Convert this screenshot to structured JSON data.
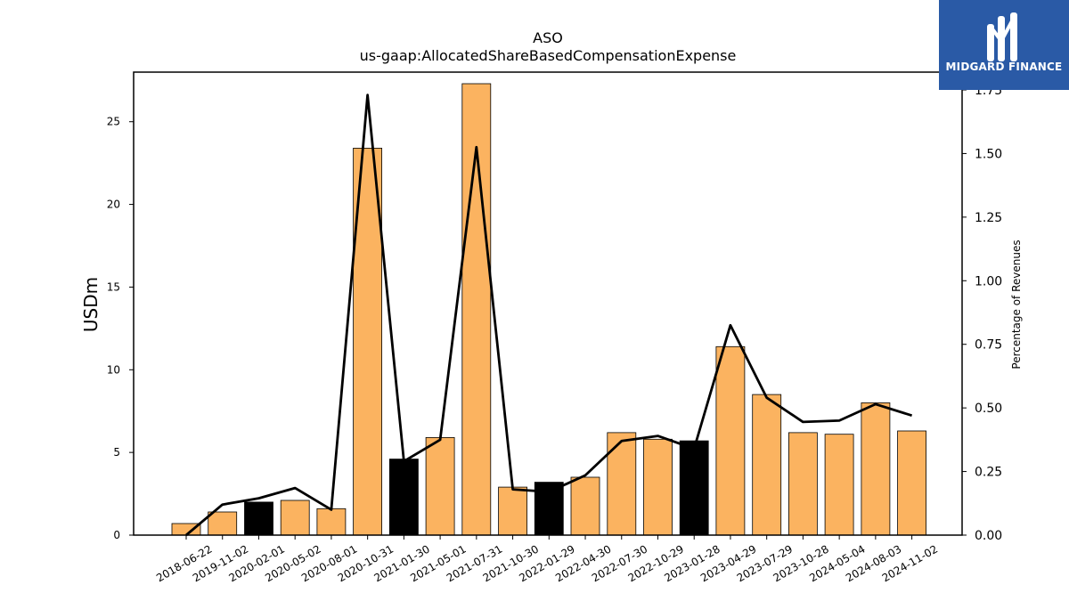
{
  "chart_data": {
    "type": "bar",
    "title": "ASO",
    "subtitle": "us-gaap:AllocatedShareBasedCompensationExpense",
    "ylabel": "USDm",
    "y2label": "Percentage of Revenues",
    "ylim": [
      0,
      28
    ],
    "y2lim": [
      0,
      1.82
    ],
    "yticks": [
      "0",
      "5",
      "10",
      "15",
      "20",
      "25"
    ],
    "y2ticks": [
      "0.00",
      "0.25",
      "0.50",
      "0.75",
      "1.00",
      "1.25",
      "1.50",
      "1.75"
    ],
    "grid": false,
    "categories": [
      "2018-06-22",
      "2019-11-02",
      "2020-02-01",
      "2020-05-02",
      "2020-08-01",
      "2020-10-31",
      "2021-01-30",
      "2021-05-01",
      "2021-07-31",
      "2021-10-30",
      "2022-01-29",
      "2022-04-30",
      "2022-07-30",
      "2022-10-29",
      "2023-01-28",
      "2023-04-29",
      "2023-07-29",
      "2023-10-28",
      "2024-05-04",
      "2024-08-03",
      "2024-11-02"
    ],
    "series": [
      {
        "kind": "bar",
        "axis": "left",
        "values": [
          0.7,
          1.4,
          2.0,
          2.1,
          1.6,
          23.4,
          4.6,
          5.9,
          27.3,
          2.9,
          3.2,
          3.5,
          6.2,
          5.8,
          5.7,
          11.4,
          8.5,
          6.2,
          6.1,
          8.0,
          6.3
        ],
        "highlight": [
          false,
          false,
          true,
          false,
          false,
          false,
          true,
          false,
          false,
          false,
          true,
          false,
          false,
          false,
          true,
          false,
          false,
          false,
          false,
          false,
          false
        ],
        "color": "#fbb360",
        "highlight_color": "#000000"
      },
      {
        "kind": "line",
        "axis": "right",
        "values": [
          0.0,
          0.12,
          0.145,
          0.185,
          0.1,
          1.73,
          0.29,
          0.375,
          1.525,
          0.18,
          0.17,
          0.235,
          0.37,
          0.39,
          0.34,
          0.825,
          0.54,
          0.445,
          0.45,
          0.515,
          0.47
        ],
        "color": "#000000"
      }
    ]
  },
  "logo": {
    "text": "MIDGARD FINANCE",
    "background": "#2a5aa6"
  }
}
